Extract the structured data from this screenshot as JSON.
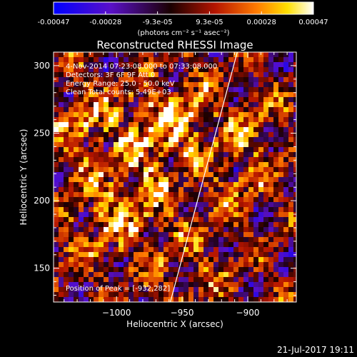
{
  "colorbar": {
    "ticks": [
      "-0.00047",
      "-0.00028",
      "-9.3e-05",
      "9.3e-05",
      "0.00028",
      "0.00047"
    ],
    "units": "(photons cm⁻² s⁻¹ asec⁻²)",
    "min": -0.00047,
    "max": 0.00047
  },
  "annotations": {
    "time_range": "4-Nov-2014 07:23:08.000 to 07:33:08.000",
    "detectors": "Detectors: 3F 6F 9F  Att 0",
    "energy": "Energy Range: 25.0 - 50.0 keV",
    "method": "Clean     Total counts: 5.49E+03",
    "peak": "Position of Peak = [-932,282]"
  },
  "footer": {
    "date": "21-Jul-2017 19:11"
  },
  "colors": {
    "background": "#000000",
    "text": "#ffffff",
    "limb": "#ffffff"
  },
  "chart_data": {
    "type": "heatmap",
    "title": "Reconstructed RHESSI Image",
    "xlabel": "Heliocentric X (arcsec)",
    "ylabel": "Heliocentric Y (arcsec)",
    "xlim": [
      -1048,
      -863
    ],
    "ylim": [
      125,
      310
    ],
    "xticks": [
      -1000,
      -950,
      -900
    ],
    "yticks": [
      150,
      200,
      250,
      300
    ],
    "xtick_labels": [
      "−1000",
      "−950",
      "−900"
    ],
    "ytick_labels": [
      "150",
      "200",
      "250",
      "300"
    ],
    "colormap": "blue-purple-red-yellow-white",
    "limb_line": {
      "x": [
        -959,
        -908
      ],
      "y": [
        125,
        310
      ]
    },
    "peak_position": [
      -932,
      282
    ]
  }
}
